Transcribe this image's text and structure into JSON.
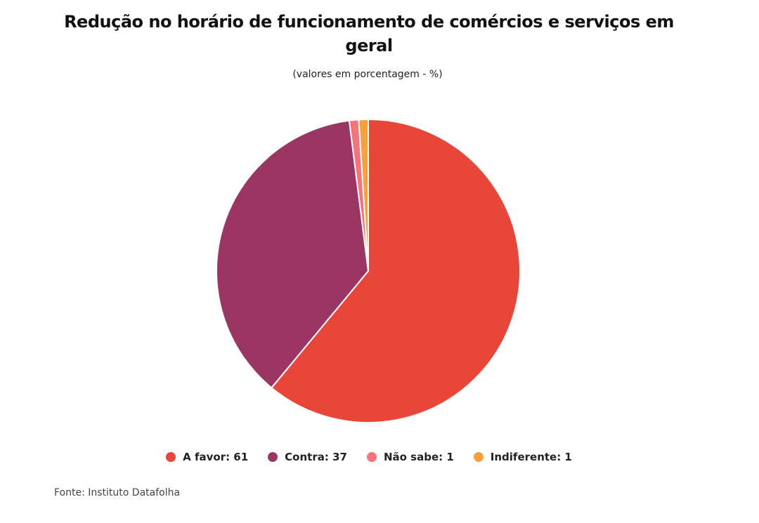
{
  "chart_data": {
    "type": "pie",
    "title": "Redução no horário de funcionamento de comércios e serviços em geral",
    "subtitle": "(valores em porcentagem - %)",
    "categories": [
      "A favor",
      "Contra",
      "Não sabe",
      "Indiferente"
    ],
    "values": [
      61,
      37,
      1,
      1
    ],
    "colors": [
      "#e9463a",
      "#9b3563",
      "#f4747a",
      "#f7a03c"
    ],
    "legend_labels": [
      "A favor: 61",
      "Contra: 37",
      "Não sabe: 1",
      "Indiferente: 1"
    ],
    "legend_position": "bottom",
    "source": "Fonte: Instituto Datafolha"
  }
}
